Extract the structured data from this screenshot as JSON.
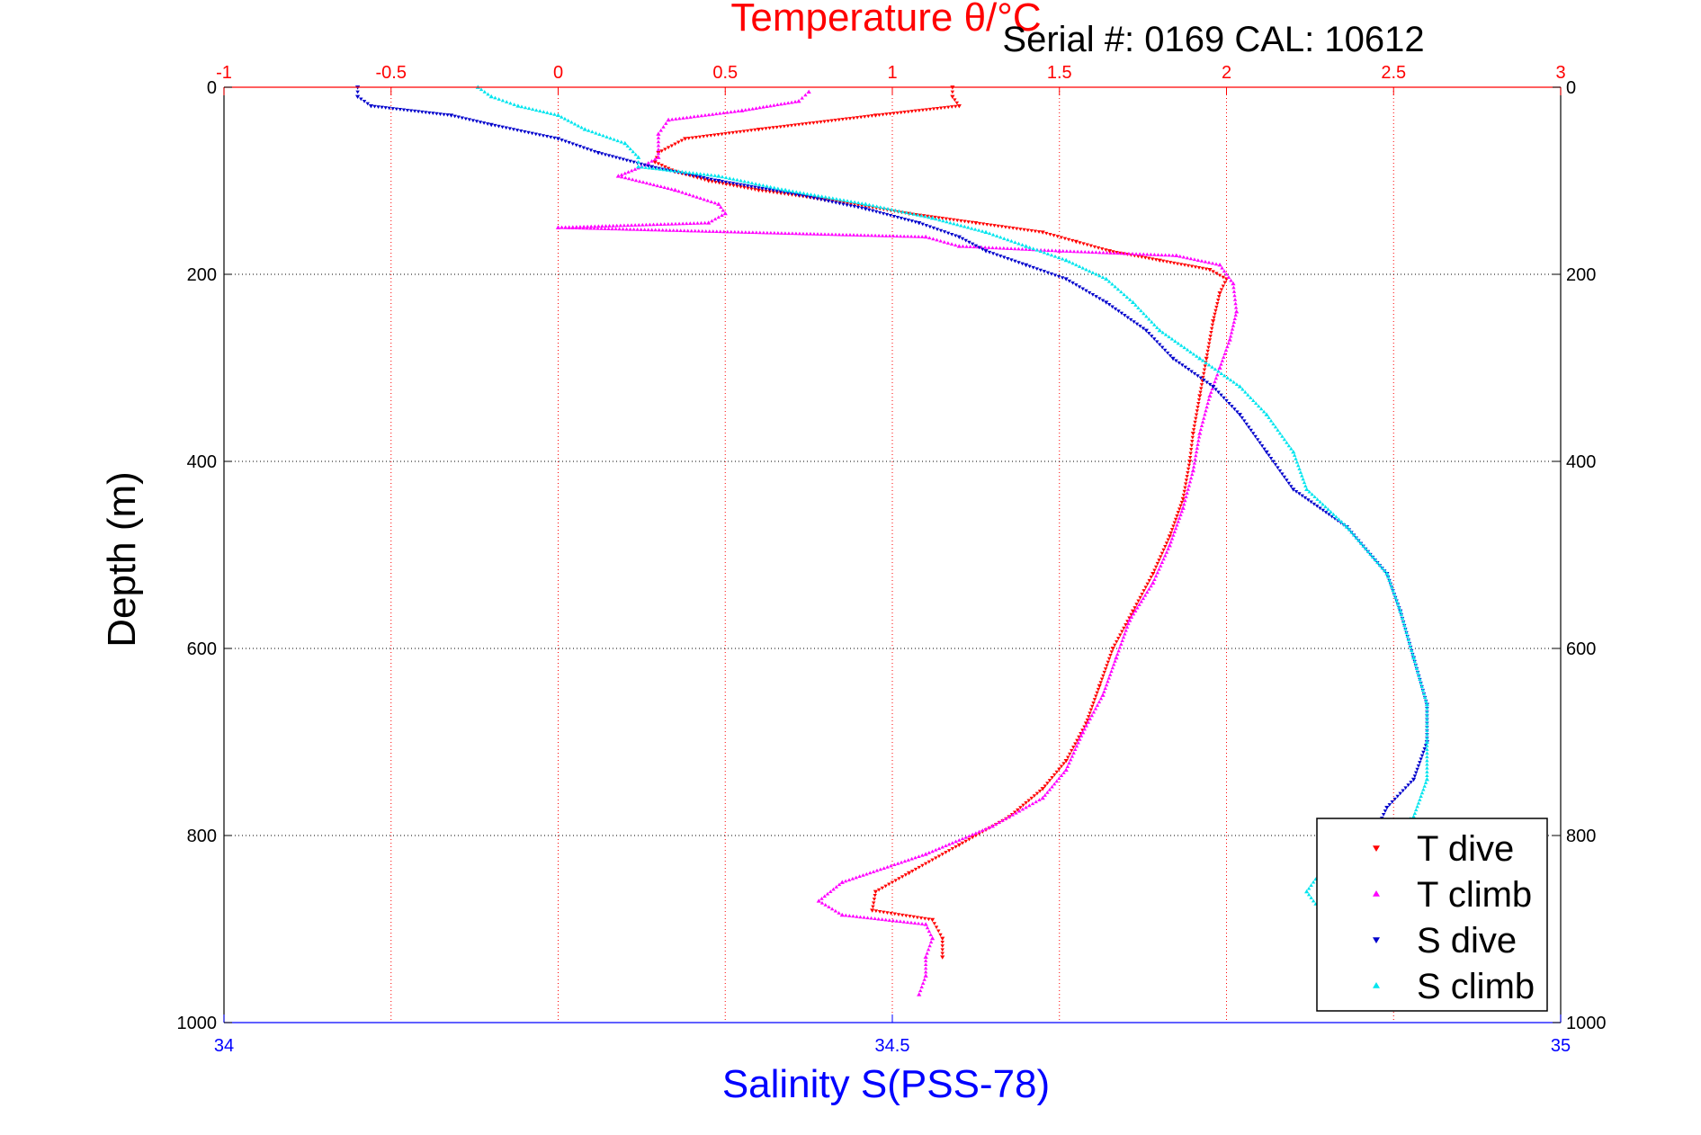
{
  "chart_data": {
    "type": "scatter",
    "top_axis": {
      "label": "Temperature θ/°C",
      "range": [
        -1,
        3
      ],
      "ticks": [
        -1,
        -0.5,
        0,
        0.5,
        1,
        1.5,
        2,
        2.5,
        3
      ],
      "tick_labels": [
        "-1",
        "-0.5",
        "0",
        "0.5",
        "1",
        "1.5",
        "2",
        "2.5",
        "3"
      ],
      "color": "#ff0000",
      "grid": true
    },
    "bottom_axis": {
      "label": "Salinity S(PSS-78)",
      "range": [
        34,
        35
      ],
      "ticks": [
        34,
        34.5,
        35
      ],
      "tick_labels": [
        "34",
        "34.5",
        "35"
      ],
      "color": "#0000ff"
    },
    "y_axis": {
      "label": "Depth (m)",
      "range": [
        0,
        1000
      ],
      "reversed": true,
      "ticks": [
        0,
        200,
        400,
        600,
        800,
        1000
      ],
      "tick_labels": [
        "0",
        "200",
        "400",
        "600",
        "800",
        "1000"
      ],
      "grid": true
    },
    "annotation": "Serial #: 0169 CAL: 10612",
    "legend_position": "bottom-right",
    "series": [
      {
        "name": "T dive",
        "axis": "temperature",
        "color": "#ff0000",
        "marker": "triangle-down",
        "points": [
          [
            1.18,
            0
          ],
          [
            1.18,
            10
          ],
          [
            1.2,
            20
          ],
          [
            0.95,
            30
          ],
          [
            0.6,
            45
          ],
          [
            0.38,
            55
          ],
          [
            0.3,
            70
          ],
          [
            0.29,
            80
          ],
          [
            0.35,
            90
          ],
          [
            0.45,
            100
          ],
          [
            0.6,
            110
          ],
          [
            0.8,
            120
          ],
          [
            1.05,
            135
          ],
          [
            1.25,
            145
          ],
          [
            1.45,
            155
          ],
          [
            1.55,
            165
          ],
          [
            1.65,
            175
          ],
          [
            1.8,
            185
          ],
          [
            1.95,
            195
          ],
          [
            2.0,
            205
          ],
          [
            1.98,
            220
          ],
          [
            1.96,
            250
          ],
          [
            1.94,
            290
          ],
          [
            1.92,
            330
          ],
          [
            1.9,
            370
          ],
          [
            1.89,
            400
          ],
          [
            1.87,
            440
          ],
          [
            1.83,
            480
          ],
          [
            1.78,
            520
          ],
          [
            1.72,
            560
          ],
          [
            1.66,
            600
          ],
          [
            1.62,
            640
          ],
          [
            1.58,
            680
          ],
          [
            1.52,
            720
          ],
          [
            1.45,
            750
          ],
          [
            1.35,
            780
          ],
          [
            1.2,
            810
          ],
          [
            1.05,
            840
          ],
          [
            0.95,
            860
          ],
          [
            0.94,
            880
          ],
          [
            1.12,
            890
          ],
          [
            1.15,
            910
          ],
          [
            1.15,
            930
          ]
        ]
      },
      {
        "name": "T climb",
        "axis": "temperature",
        "color": "#ff00ff",
        "marker": "triangle-up",
        "points": [
          [
            0.75,
            5
          ],
          [
            0.72,
            15
          ],
          [
            0.55,
            25
          ],
          [
            0.33,
            35
          ],
          [
            0.3,
            50
          ],
          [
            0.3,
            75
          ],
          [
            0.25,
            85
          ],
          [
            0.18,
            95
          ],
          [
            0.35,
            110
          ],
          [
            0.48,
            125
          ],
          [
            0.5,
            135
          ],
          [
            0.45,
            145
          ],
          [
            0.0,
            150
          ],
          [
            1.1,
            160
          ],
          [
            1.2,
            170
          ],
          [
            1.5,
            175
          ],
          [
            1.85,
            180
          ],
          [
            1.98,
            190
          ],
          [
            2.02,
            210
          ],
          [
            2.03,
            240
          ],
          [
            2.01,
            270
          ],
          [
            1.98,
            300
          ],
          [
            1.95,
            330
          ],
          [
            1.92,
            370
          ],
          [
            1.9,
            410
          ],
          [
            1.87,
            450
          ],
          [
            1.83,
            490
          ],
          [
            1.78,
            530
          ],
          [
            1.71,
            570
          ],
          [
            1.67,
            610
          ],
          [
            1.63,
            650
          ],
          [
            1.57,
            690
          ],
          [
            1.52,
            730
          ],
          [
            1.45,
            760
          ],
          [
            1.3,
            790
          ],
          [
            1.1,
            820
          ],
          [
            0.85,
            850
          ],
          [
            0.78,
            870
          ],
          [
            0.85,
            885
          ],
          [
            1.1,
            895
          ],
          [
            1.12,
            910
          ],
          [
            1.1,
            930
          ],
          [
            1.1,
            950
          ],
          [
            1.08,
            970
          ]
        ]
      },
      {
        "name": "S dive",
        "axis": "salinity",
        "color": "#0000cc",
        "marker": "triangle-down",
        "points": [
          [
            34.1,
            0
          ],
          [
            34.1,
            10
          ],
          [
            34.11,
            20
          ],
          [
            34.17,
            30
          ],
          [
            34.2,
            40
          ],
          [
            34.25,
            55
          ],
          [
            34.28,
            70
          ],
          [
            34.32,
            85
          ],
          [
            34.37,
            100
          ],
          [
            34.43,
            115
          ],
          [
            34.48,
            130
          ],
          [
            34.52,
            145
          ],
          [
            34.55,
            160
          ],
          [
            34.57,
            175
          ],
          [
            34.6,
            190
          ],
          [
            34.63,
            205
          ],
          [
            34.66,
            230
          ],
          [
            34.69,
            260
          ],
          [
            34.71,
            290
          ],
          [
            34.74,
            320
          ],
          [
            34.76,
            350
          ],
          [
            34.78,
            390
          ],
          [
            34.8,
            430
          ],
          [
            34.84,
            470
          ],
          [
            34.87,
            520
          ],
          [
            34.88,
            560
          ],
          [
            34.89,
            610
          ],
          [
            34.9,
            660
          ],
          [
            34.9,
            700
          ],
          [
            34.89,
            740
          ],
          [
            34.87,
            770
          ],
          [
            34.86,
            800
          ],
          [
            34.86,
            830
          ],
          [
            34.87,
            860
          ],
          [
            34.86,
            880
          ],
          [
            34.88,
            900
          ],
          [
            34.89,
            940
          ],
          [
            34.89,
            980
          ]
        ]
      },
      {
        "name": "S climb",
        "axis": "salinity",
        "color": "#00e5ee",
        "marker": "triangle-up",
        "points": [
          [
            34.19,
            0
          ],
          [
            34.2,
            10
          ],
          [
            34.22,
            20
          ],
          [
            34.25,
            30
          ],
          [
            34.27,
            45
          ],
          [
            34.3,
            60
          ],
          [
            34.31,
            75
          ],
          [
            34.31,
            85
          ],
          [
            34.37,
            95
          ],
          [
            34.42,
            110
          ],
          [
            34.48,
            125
          ],
          [
            34.53,
            140
          ],
          [
            34.57,
            155
          ],
          [
            34.6,
            170
          ],
          [
            34.63,
            185
          ],
          [
            34.66,
            205
          ],
          [
            34.68,
            230
          ],
          [
            34.7,
            260
          ],
          [
            34.73,
            290
          ],
          [
            34.76,
            320
          ],
          [
            34.78,
            350
          ],
          [
            34.8,
            390
          ],
          [
            34.81,
            430
          ],
          [
            34.84,
            470
          ],
          [
            34.87,
            520
          ],
          [
            34.88,
            560
          ],
          [
            34.89,
            610
          ],
          [
            34.9,
            660
          ],
          [
            34.9,
            700
          ],
          [
            34.9,
            740
          ],
          [
            34.89,
            780
          ],
          [
            34.85,
            810
          ],
          [
            34.82,
            840
          ],
          [
            34.81,
            860
          ],
          [
            34.82,
            880
          ],
          [
            34.86,
            900
          ],
          [
            34.89,
            940
          ],
          [
            34.89,
            980
          ]
        ]
      }
    ]
  }
}
